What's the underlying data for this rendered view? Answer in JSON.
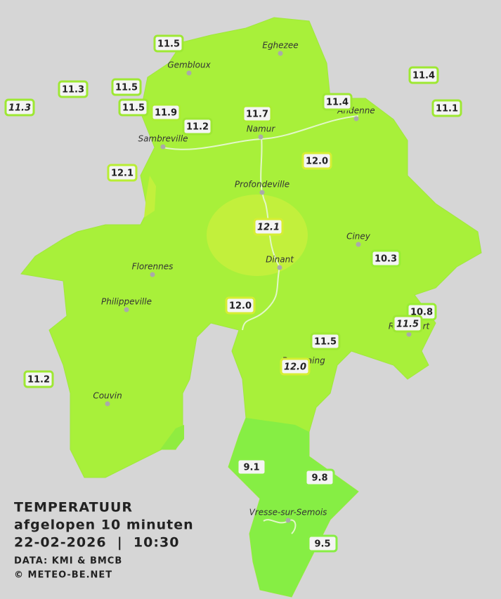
{
  "legend": {
    "title": "TEMPERATUUR",
    "subtitle": "afgelopen 10 minuten",
    "datetime": "22-02-2026  |  10:30",
    "source": "DATA: KMI & BMCB",
    "copyright": "© METEO-BE.NET"
  },
  "cities": [
    "Eghezee",
    "Gembloux",
    "Andenne",
    "Namur",
    "Sambreville",
    "Profondeville",
    "Ciney",
    "Dinant",
    "Florennes",
    "Philippeville",
    "Rochefort",
    "Beauraing",
    "Couvin",
    "Vresse-sur-Semois"
  ],
  "stations": [
    {
      "value": "11.5",
      "italic": false,
      "border": "#9ee833"
    },
    {
      "value": "11.3",
      "italic": false,
      "border": "#9ee833"
    },
    {
      "value": "11.3",
      "italic": true,
      "border": "#9ee833"
    },
    {
      "value": "11.5",
      "italic": false,
      "border": "#9ee833"
    },
    {
      "value": "11.5",
      "italic": false,
      "border": "#9ee833"
    },
    {
      "value": "11.9",
      "italic": false,
      "border": "#aaee33"
    },
    {
      "value": "11.2",
      "italic": false,
      "border": "#9ee833"
    },
    {
      "value": "11.7",
      "italic": false,
      "border": "#aaee33"
    },
    {
      "value": "11.4",
      "italic": false,
      "border": "#9ee833"
    },
    {
      "value": "11.4",
      "italic": false,
      "border": "#9ee833"
    },
    {
      "value": "11.1",
      "italic": false,
      "border": "#9ee833"
    },
    {
      "value": "12.1",
      "italic": false,
      "border": "#b8ee33"
    },
    {
      "value": "12.0",
      "italic": false,
      "border": "#d6ee33"
    },
    {
      "value": "12.1",
      "italic": true,
      "border": "#d6ee33"
    },
    {
      "value": "10.3",
      "italic": false,
      "border": "#99ee33"
    },
    {
      "value": "12.0",
      "italic": false,
      "border": "#d6ee33"
    },
    {
      "value": "10.8",
      "italic": false,
      "border": "#99ee33"
    },
    {
      "value": "11.5",
      "italic": true,
      "border": "#9ee833"
    },
    {
      "value": "11.5",
      "italic": false,
      "border": "#9ee833"
    },
    {
      "value": "12.0",
      "italic": true,
      "border": "#d6ee33"
    },
    {
      "value": "11.2",
      "italic": false,
      "border": "#9ee833"
    },
    {
      "value": "9.1",
      "italic": false,
      "border": "#88ee44"
    },
    {
      "value": "9.8",
      "italic": false,
      "border": "#88ee44"
    },
    {
      "value": "9.5",
      "italic": false,
      "border": "#88ee44"
    }
  ]
}
